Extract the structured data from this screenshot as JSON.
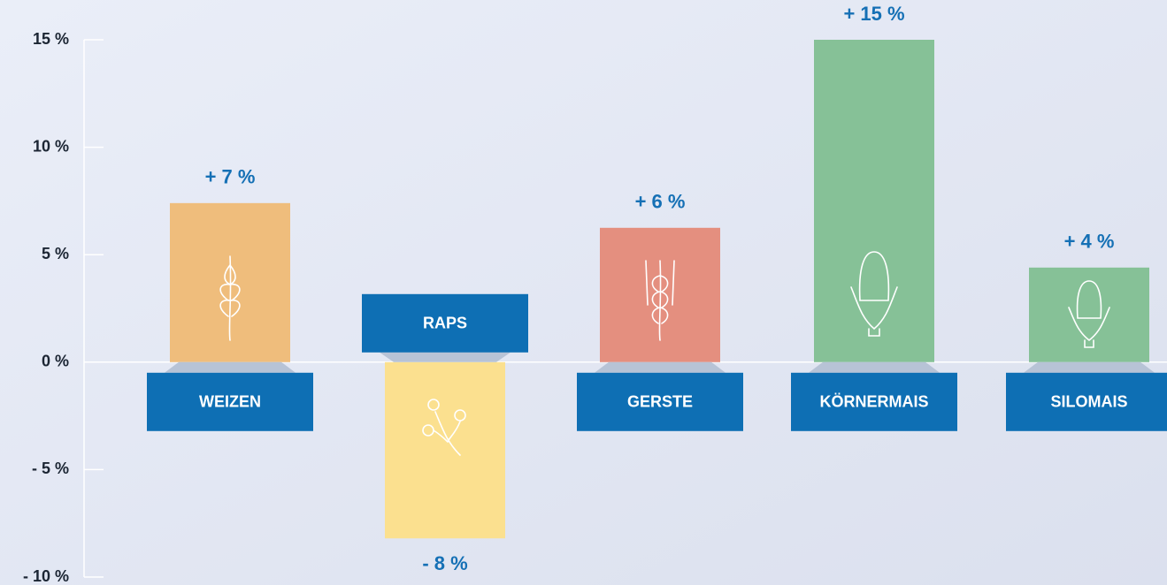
{
  "chart_data": {
    "type": "bar",
    "categories": [
      "WEIZEN",
      "RAPS",
      "GERSTE",
      "KÖRNERMAIS",
      "SILOMAIS"
    ],
    "values": [
      7.4,
      -8.2,
      6.25,
      15,
      4.4
    ],
    "value_labels": [
      "+ 7 %",
      "- 8 %",
      "+ 6 %",
      "+ 15 %",
      "+ 4 %"
    ],
    "colors": [
      "#efbd7c",
      "#fbe08f",
      "#e48f7f",
      "#86c197",
      "#86c197"
    ],
    "ylim": [
      -10,
      15
    ],
    "yticks": [
      {
        "value": 15,
        "label": "15 %"
      },
      {
        "value": 10,
        "label": "10 %"
      },
      {
        "value": 5,
        "label": "5 %"
      },
      {
        "value": 0,
        "label": "0 %"
      },
      {
        "value": -5,
        "label": "- 5 %"
      },
      {
        "value": -10,
        "label": "- 10 %"
      }
    ]
  }
}
